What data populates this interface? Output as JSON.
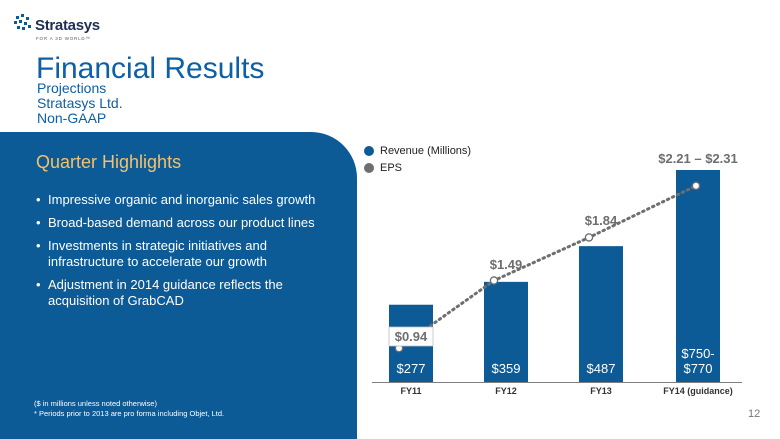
{
  "logo": {
    "name": "Stratasys",
    "tagline": "FOR A 3D WORLD™"
  },
  "title": "Financial Results",
  "subtitle": [
    "Projections",
    "Stratasys Ltd.",
    "Non-GAAP"
  ],
  "highlights": {
    "title": "Quarter Highlights",
    "bullets": [
      "Impressive organic and inorganic sales growth",
      "Broad-based demand across our product lines",
      "Investments in strategic initiatives and infrastructure to accelerate our growth",
      "Adjustment in 2014 guidance reflects the acquisition of GrabCAD"
    ]
  },
  "footnotes": [
    "($ in millions unless noted otherwise)",
    "* Periods prior to 2013 are pro forma including Objet, Ltd."
  ],
  "page_number": "12",
  "colors": {
    "revenue": "#0c5a96",
    "eps": "#6d6e70",
    "accent_title": "#0d5fa6",
    "highlight": "#f5c16c"
  },
  "chart_data": {
    "type": "bar",
    "categories": [
      "FY11",
      "FY12",
      "FY13",
      "FY14 (guidance)"
    ],
    "series": [
      {
        "name": "Revenue (Millions)",
        "kind": "bar",
        "values": [
          277,
          359,
          487,
          760
        ],
        "labels": [
          "$277",
          "$359",
          "$487",
          "$750-\n$770"
        ]
      },
      {
        "name": "EPS",
        "kind": "line",
        "style": "dotted",
        "values": [
          0.94,
          1.49,
          1.84,
          2.26
        ],
        "labels": [
          "$0.94",
          "$1.49",
          "$1.84",
          "$2.21 – $2.31"
        ]
      }
    ],
    "legend": "top-left",
    "grid": false
  }
}
